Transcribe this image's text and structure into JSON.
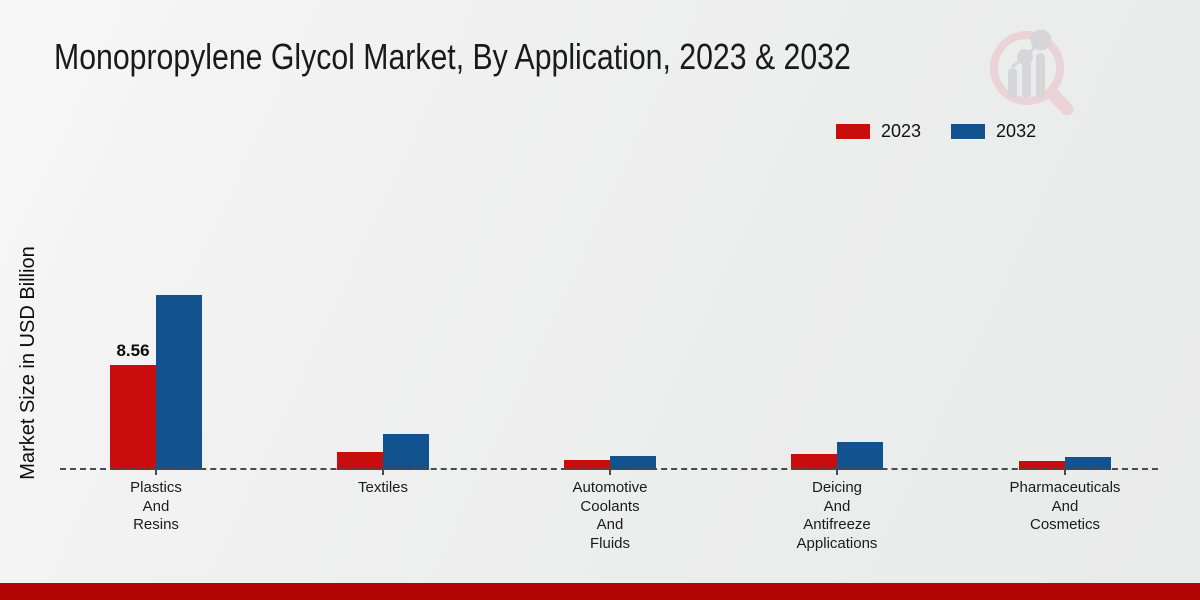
{
  "page": {
    "title": "Monopropylene Glycol Market, By Application, 2023 & 2032"
  },
  "y_axis": {
    "label": "Market Size in USD Billion"
  },
  "legend": {
    "position": "top-right",
    "items": [
      "2023",
      "2032"
    ]
  },
  "colors": {
    "bar_2023": "#c90c0c",
    "bar_2032": "#12528f",
    "footer_bar": "#b40505",
    "baseline": "#4a4a4a",
    "background": "#efefef"
  },
  "icons": {
    "watermark": "magnifier-bar-chart-logo"
  },
  "chart_data": {
    "type": "bar",
    "title": "Monopropylene Glycol Market, By Application, 2023 & 2032",
    "xlabel": "",
    "ylabel": "Market Size in USD Billion",
    "ylim": [
      0,
      16
    ],
    "grid": false,
    "baseline_style": "dashed",
    "legend_position": "top-right",
    "categories": [
      "Plastics\nAnd\nResins",
      "Textiles",
      "Automotive\nCoolants\nAnd\nFluids",
      "Deicing\nAnd\nAntifreeze\nApplications",
      "Pharmaceuticals\nAnd\nCosmetics"
    ],
    "series": [
      {
        "name": "2023",
        "color": "#c90c0c",
        "values": [
          8.56,
          1.45,
          0.85,
          1.3,
          0.7
        ],
        "data_labels": [
          "8.56",
          "",
          "",
          "",
          ""
        ]
      },
      {
        "name": "2032",
        "color": "#12528f",
        "values": [
          14.3,
          2.9,
          1.15,
          2.25,
          1.05
        ],
        "data_labels": [
          "",
          "",
          "",
          "",
          ""
        ]
      }
    ]
  }
}
